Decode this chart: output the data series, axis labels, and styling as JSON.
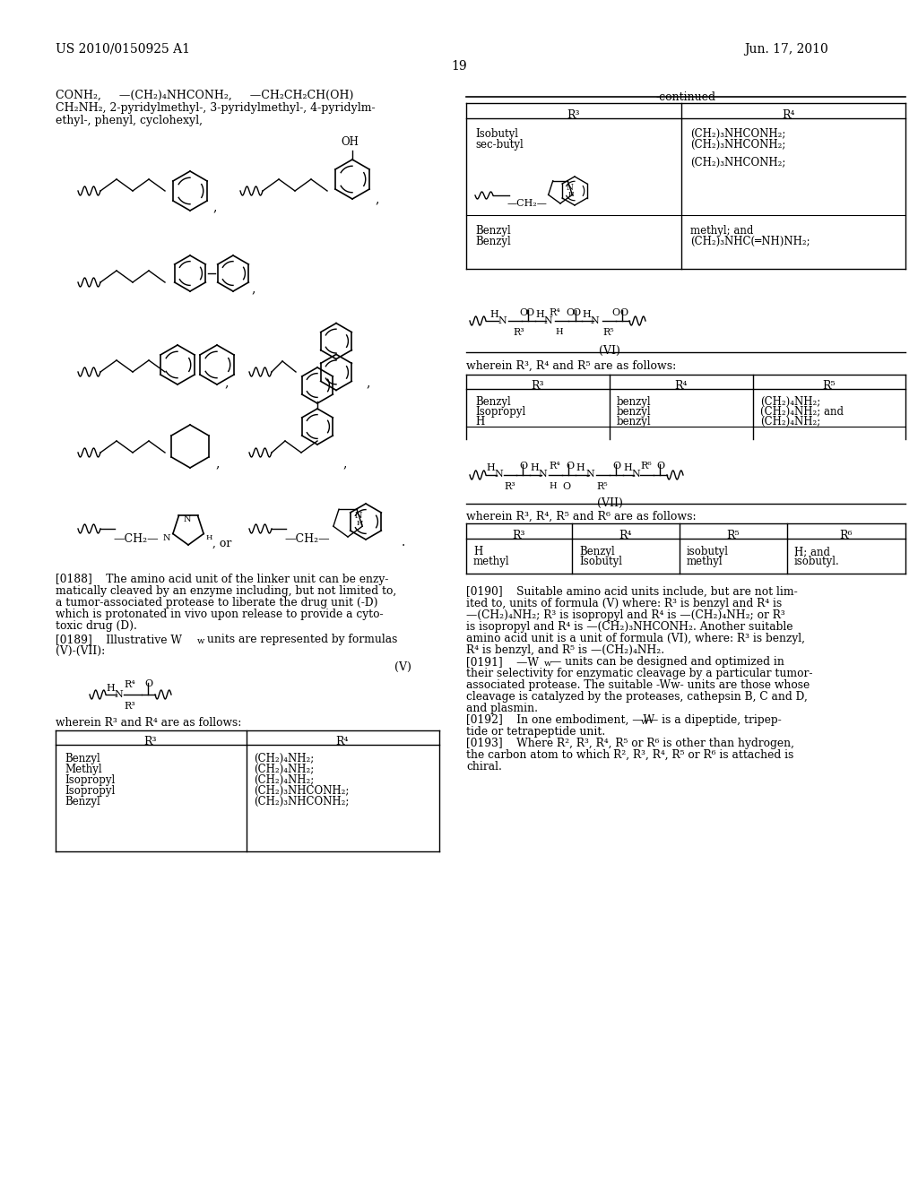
{
  "page_number": "19",
  "header_left": "US 2010/0150925 A1",
  "header_right": "Jun. 17, 2010",
  "background_color": "#ffffff"
}
